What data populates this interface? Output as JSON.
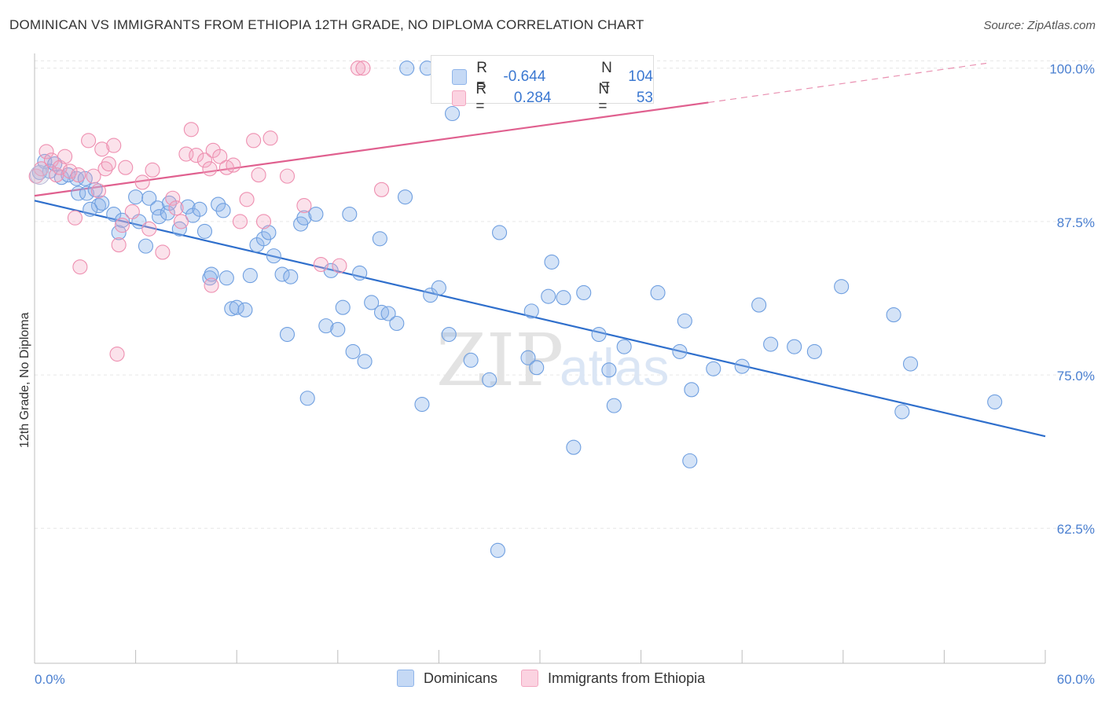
{
  "title": "DOMINICAN VS IMMIGRANTS FROM ETHIOPIA 12TH GRADE, NO DIPLOMA CORRELATION CHART",
  "source": "Source: ZipAtlas.com",
  "watermark": {
    "zip": "ZIP",
    "atlas": "atlas"
  },
  "legend": {
    "r_label": "R =",
    "n_label": "N =",
    "rows": [
      {
        "name": "Dominicans",
        "r": "-0.644",
        "n": "104",
        "color": "#8fb5ea"
      },
      {
        "name": "Immigrants from Ethiopia",
        "r": "0.284",
        "n": "53",
        "color": "#f3a6c0"
      }
    ]
  },
  "bottom_legend": {
    "series1": "Dominicans",
    "series2": "Immigrants from Ethiopia"
  },
  "chart_data": {
    "type": "scatter",
    "title": "DOMINICAN VS IMMIGRANTS FROM ETHIOPIA 12TH GRADE, NO DIPLOMA CORRELATION CHART",
    "xlabel": "",
    "ylabel": "12th Grade, No Diploma",
    "xlim": [
      0,
      60
    ],
    "ylim": [
      51.5,
      101.2
    ],
    "x_tick_labels": [
      "0.0%",
      "60.0%"
    ],
    "y_ticks": [
      62.5,
      75.0,
      87.5,
      100.0
    ],
    "y_tick_labels": [
      "62.5%",
      "75.0%",
      "87.5%",
      "100.0%"
    ],
    "colors": {
      "blue": "#6f9fe0",
      "pink": "#ee8fb0",
      "blue_line": "#2f6fcc",
      "pink_line": "#e0608f"
    },
    "series": [
      {
        "name": "Dominicans",
        "points": [
          [
            0.3,
            91.5
          ],
          [
            0.6,
            92.4
          ],
          [
            0.9,
            91.6
          ],
          [
            1.2,
            92.2
          ],
          [
            1.6,
            91.1
          ],
          [
            2.0,
            91.3
          ],
          [
            2.5,
            91.0
          ],
          [
            2.6,
            89.8
          ],
          [
            3.1,
            89.8
          ],
          [
            3.6,
            90.1
          ],
          [
            3.8,
            88.8
          ],
          [
            4.0,
            89.0
          ],
          [
            4.7,
            88.1
          ],
          [
            5.0,
            86.6
          ],
          [
            5.2,
            87.6
          ],
          [
            6.0,
            89.5
          ],
          [
            6.6,
            85.5
          ],
          [
            6.2,
            87.5
          ],
          [
            6.8,
            89.4
          ],
          [
            7.3,
            88.6
          ],
          [
            7.4,
            87.9
          ],
          [
            7.9,
            88.2
          ],
          [
            8.6,
            86.9
          ],
          [
            9.1,
            88.7
          ],
          [
            9.4,
            88.0
          ],
          [
            10.1,
            86.7
          ],
          [
            10.4,
            82.9
          ],
          [
            10.5,
            83.2
          ],
          [
            10.9,
            88.9
          ],
          [
            11.2,
            88.4
          ],
          [
            11.4,
            82.9
          ],
          [
            11.7,
            80.4
          ],
          [
            12.0,
            80.5
          ],
          [
            12.5,
            80.3
          ],
          [
            12.8,
            83.1
          ],
          [
            13.2,
            85.6
          ],
          [
            13.6,
            86.1
          ],
          [
            13.9,
            86.6
          ],
          [
            14.2,
            84.7
          ],
          [
            14.7,
            83.2
          ],
          [
            15.0,
            78.3
          ],
          [
            15.2,
            83.0
          ],
          [
            15.8,
            87.3
          ],
          [
            16.0,
            87.8
          ],
          [
            16.2,
            73.1
          ],
          [
            16.7,
            88.1
          ],
          [
            17.3,
            79.0
          ],
          [
            17.6,
            83.5
          ],
          [
            18.0,
            78.7
          ],
          [
            18.3,
            80.5
          ],
          [
            18.7,
            88.1
          ],
          [
            18.9,
            76.9
          ],
          [
            19.3,
            83.3
          ],
          [
            19.6,
            76.1
          ],
          [
            20.0,
            80.9
          ],
          [
            20.5,
            86.1
          ],
          [
            20.6,
            80.1
          ],
          [
            21.0,
            80.0
          ],
          [
            21.5,
            79.2
          ],
          [
            22.0,
            89.5
          ],
          [
            23.0,
            72.6
          ],
          [
            23.5,
            81.5
          ],
          [
            24.0,
            82.1
          ],
          [
            24.6,
            78.3
          ],
          [
            24.8,
            96.3
          ],
          [
            25.9,
            76.2
          ],
          [
            27.0,
            74.6
          ],
          [
            27.5,
            60.7
          ],
          [
            27.6,
            86.6
          ],
          [
            29.3,
            76.4
          ],
          [
            29.5,
            80.2
          ],
          [
            29.8,
            75.6
          ],
          [
            30.5,
            81.4
          ],
          [
            30.7,
            84.2
          ],
          [
            31.4,
            81.3
          ],
          [
            32.0,
            69.1
          ],
          [
            32.6,
            81.7
          ],
          [
            33.5,
            78.3
          ],
          [
            34.1,
            75.4
          ],
          [
            34.4,
            72.5
          ],
          [
            35.0,
            77.3
          ],
          [
            37.0,
            81.7
          ],
          [
            38.3,
            76.9
          ],
          [
            38.6,
            79.4
          ],
          [
            38.9,
            68.0
          ],
          [
            39.0,
            73.8
          ],
          [
            40.3,
            75.5
          ],
          [
            42.0,
            75.7
          ],
          [
            43.0,
            80.7
          ],
          [
            43.7,
            77.5
          ],
          [
            45.1,
            77.3
          ],
          [
            46.3,
            76.9
          ],
          [
            47.9,
            82.2
          ],
          [
            51.0,
            79.9
          ],
          [
            51.5,
            72.0
          ],
          [
            52.0,
            75.9
          ],
          [
            57.0,
            72.8
          ],
          [
            23.3,
            100.0
          ],
          [
            22.1,
            100.0
          ],
          [
            30.0,
            100.0
          ],
          [
            28.5,
            100.0
          ],
          [
            3.3,
            88.5
          ],
          [
            8.0,
            89.0
          ],
          [
            9.8,
            88.5
          ],
          [
            3.0,
            91.0
          ]
        ]
      },
      {
        "name": "Immigrants from Ethiopia",
        "points": [
          [
            0.1,
            91.2
          ],
          [
            0.4,
            91.8
          ],
          [
            0.7,
            93.2
          ],
          [
            1.0,
            92.5
          ],
          [
            1.3,
            91.3
          ],
          [
            1.5,
            91.9
          ],
          [
            1.8,
            92.8
          ],
          [
            2.1,
            91.6
          ],
          [
            2.4,
            87.8
          ],
          [
            2.6,
            91.3
          ],
          [
            2.7,
            83.8
          ],
          [
            3.2,
            94.1
          ],
          [
            3.5,
            91.2
          ],
          [
            3.8,
            90.0
          ],
          [
            4.0,
            93.4
          ],
          [
            4.2,
            91.8
          ],
          [
            4.4,
            92.2
          ],
          [
            4.7,
            93.7
          ],
          [
            5.0,
            85.6
          ],
          [
            5.2,
            87.2
          ],
          [
            5.4,
            91.9
          ],
          [
            5.8,
            88.3
          ],
          [
            6.4,
            90.7
          ],
          [
            6.8,
            86.9
          ],
          [
            7.0,
            91.7
          ],
          [
            7.6,
            85.0
          ],
          [
            8.2,
            89.4
          ],
          [
            8.4,
            88.6
          ],
          [
            8.7,
            87.5
          ],
          [
            9.0,
            93.0
          ],
          [
            9.3,
            95.0
          ],
          [
            9.6,
            92.9
          ],
          [
            10.1,
            92.5
          ],
          [
            10.4,
            91.8
          ],
          [
            10.6,
            93.3
          ],
          [
            11.0,
            92.8
          ],
          [
            11.4,
            91.9
          ],
          [
            11.8,
            92.1
          ],
          [
            12.2,
            87.5
          ],
          [
            12.6,
            89.3
          ],
          [
            13.0,
            94.1
          ],
          [
            13.3,
            91.3
          ],
          [
            13.6,
            87.5
          ],
          [
            14.0,
            94.3
          ],
          [
            15.0,
            91.2
          ],
          [
            16.0,
            88.8
          ],
          [
            17.0,
            84.0
          ],
          [
            18.1,
            83.9
          ],
          [
            19.2,
            100.0
          ],
          [
            19.5,
            100.0
          ],
          [
            20.6,
            90.1
          ],
          [
            4.9,
            76.7
          ],
          [
            10.5,
            82.3
          ]
        ]
      }
    ],
    "trendlines": [
      {
        "series": "Dominicans",
        "x0": 0,
        "y0": 89.2,
        "x1": 60,
        "y1": 70.0,
        "style": "solid"
      },
      {
        "series": "Immigrants from Ethiopia",
        "x0": 0,
        "y0": 89.6,
        "x1": 40,
        "y1": 97.2,
        "style": "solid"
      },
      {
        "series": "Immigrants from Ethiopia",
        "x0": 40,
        "y0": 97.2,
        "x1": 56.5,
        "y1": 100.4,
        "style": "dashed"
      }
    ]
  }
}
